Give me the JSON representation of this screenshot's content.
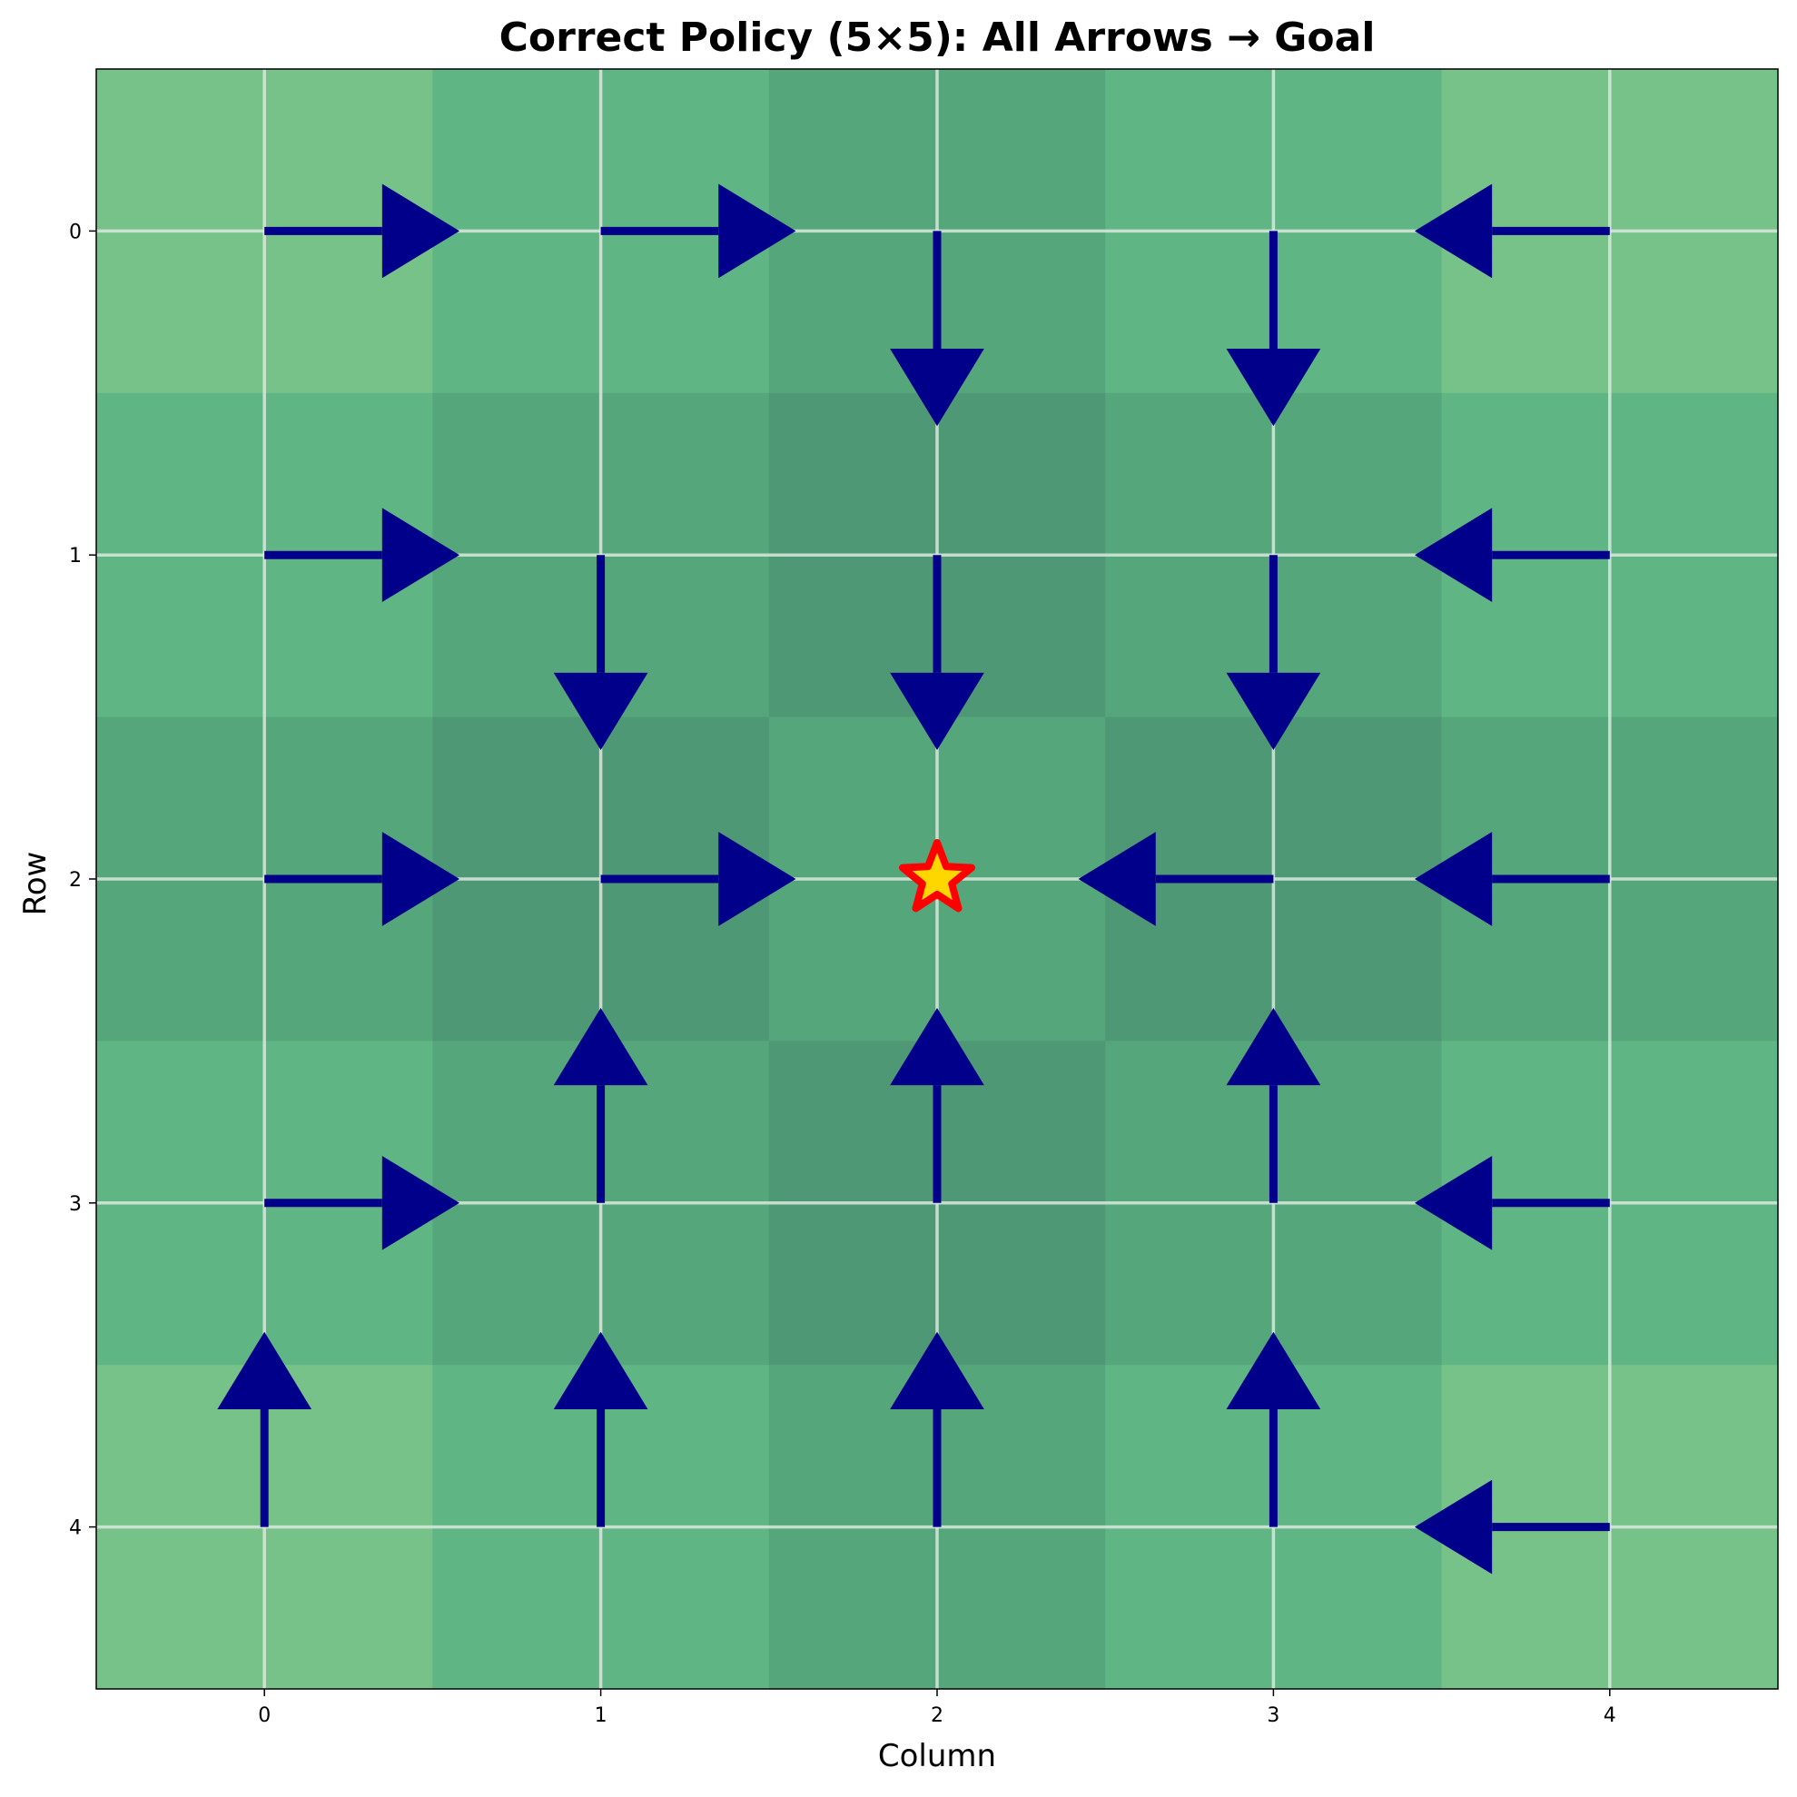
{
  "chart_data": {
    "type": "heatmap",
    "title": "Correct Policy (5×5): All Arrows → Goal",
    "xlabel": "Column",
    "ylabel": "Row",
    "grid": true,
    "x_ticks": [
      "0",
      "1",
      "2",
      "3",
      "4"
    ],
    "y_ticks": [
      "0",
      "1",
      "2",
      "3",
      "4"
    ],
    "cell_colors": [
      [
        "#77c288",
        "#5fb584",
        "#55a67a",
        "#5fb584",
        "#77c288"
      ],
      [
        "#5fb584",
        "#55a67a",
        "#4f9876",
        "#55a67a",
        "#5fb584"
      ],
      [
        "#55a67a",
        "#4f9876",
        "#55a67a",
        "#4f9876",
        "#55a67a"
      ],
      [
        "#5fb584",
        "#55a67a",
        "#4f9876",
        "#55a67a",
        "#5fb584"
      ],
      [
        "#77c288",
        "#5fb584",
        "#55a67a",
        "#5fb584",
        "#77c288"
      ]
    ],
    "policy": [
      [
        "right",
        "right",
        "down",
        "down",
        "left"
      ],
      [
        "right",
        "down",
        "down",
        "down",
        "left"
      ],
      [
        "right",
        "right",
        "goal",
        "left",
        "left"
      ],
      [
        "right",
        "up",
        "up",
        "up",
        "left"
      ],
      [
        "up",
        "up",
        "up",
        "up",
        "left"
      ]
    ],
    "goal": {
      "row": 2,
      "col": 2,
      "marker": "star-icon",
      "fill": "#ffd700",
      "edge": "#ff0000"
    },
    "arrow_color": "#00008b",
    "grid_color": "#d9e8dd"
  }
}
